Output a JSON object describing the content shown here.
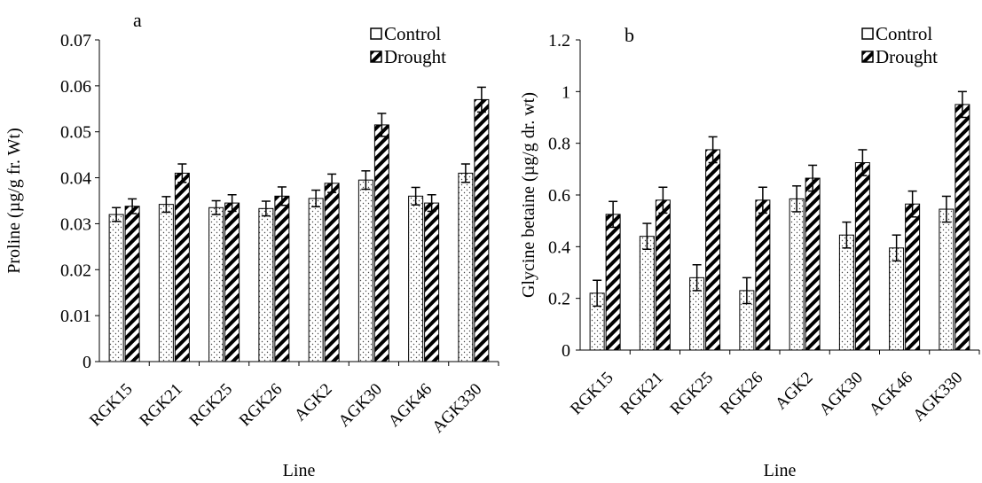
{
  "chart_data": [
    {
      "type": "bar",
      "panel_label": "a",
      "categories": [
        "RGK15",
        "RGK21",
        "RGK25",
        "RGK26",
        "AGK2",
        "AGK30",
        "AGK46",
        "AGK330"
      ],
      "series": [
        {
          "name": "Control",
          "pattern": "dots",
          "values": [
            0.032,
            0.0342,
            0.0335,
            0.0333,
            0.0355,
            0.0395,
            0.036,
            0.041
          ],
          "errors": [
            0.0015,
            0.0017,
            0.0015,
            0.0016,
            0.0018,
            0.002,
            0.0019,
            0.002
          ]
        },
        {
          "name": "Drought",
          "pattern": "diagonal-stripes",
          "values": [
            0.0338,
            0.041,
            0.0345,
            0.036,
            0.0388,
            0.0515,
            0.0345,
            0.057
          ],
          "errors": [
            0.0016,
            0.002,
            0.0018,
            0.002,
            0.002,
            0.0025,
            0.0018,
            0.0027
          ]
        }
      ],
      "xlabel": "Line",
      "ylabel": "Proline (µg/g fr. Wt)",
      "ylim": [
        0,
        0.07
      ],
      "yticks": [
        "0",
        "0.01",
        "0.02",
        "0.03",
        "0.04",
        "0.05",
        "0.06",
        "0.07"
      ],
      "grid": false,
      "legend": "top-right"
    },
    {
      "type": "bar",
      "panel_label": "b",
      "categories": [
        "RGK15",
        "RGK21",
        "RGK25",
        "RGK26",
        "AGK2",
        "AGK30",
        "AGK46",
        "AGK330"
      ],
      "series": [
        {
          "name": "Control",
          "pattern": "dots",
          "values": [
            0.22,
            0.44,
            0.28,
            0.23,
            0.585,
            0.445,
            0.395,
            0.545
          ],
          "errors": [
            0.05,
            0.05,
            0.05,
            0.05,
            0.05,
            0.05,
            0.05,
            0.05
          ]
        },
        {
          "name": "Drought",
          "pattern": "diagonal-stripes",
          "values": [
            0.525,
            0.58,
            0.775,
            0.58,
            0.665,
            0.725,
            0.565,
            0.95
          ],
          "errors": [
            0.05,
            0.05,
            0.05,
            0.05,
            0.05,
            0.05,
            0.05,
            0.05
          ]
        }
      ],
      "xlabel": "Line",
      "ylabel": "Glycine betaine (µg/g dr. wt)",
      "ylim": [
        0,
        1.2
      ],
      "yticks": [
        "0",
        "0.2",
        "0.4",
        "0.6",
        "0.8",
        "1",
        "1.2"
      ],
      "grid": false,
      "legend": "top-right"
    }
  ]
}
